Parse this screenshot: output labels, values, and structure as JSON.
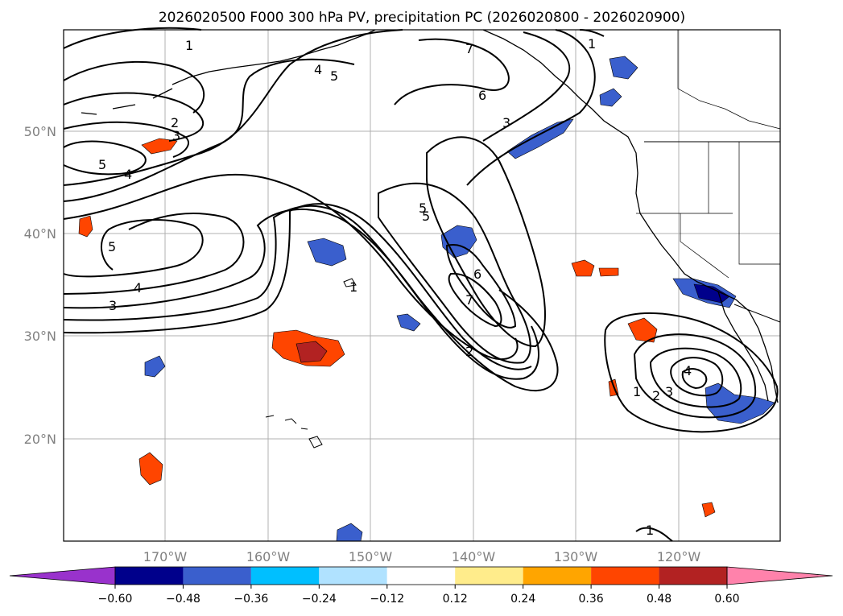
{
  "title": "2026020500 F000 300 hPa PV, precipitation PC (2026020800 - 2026020900)",
  "map": {
    "longitude_labels": [
      "170°W",
      "160°W",
      "150°W",
      "140°W",
      "130°W",
      "120°W"
    ],
    "latitude_labels": [
      "50°N",
      "40°N",
      "30°N",
      "20°N"
    ],
    "gridlines": true,
    "contour_color": "#000000"
  },
  "contour_labels": [
    "1",
    "2",
    "3",
    "4",
    "5",
    "5",
    "4",
    "5",
    "7",
    "6",
    "3",
    "1",
    "5",
    "4",
    "3",
    "5",
    "6",
    "7",
    "2",
    "1",
    "4",
    "3",
    "2",
    "1",
    "1"
  ],
  "colorbar": {
    "tick_labels": [
      "−0.60",
      "−0.48",
      "−0.36",
      "−0.24",
      "−0.12",
      "0.12",
      "0.24",
      "0.36",
      "0.48",
      "0.60"
    ],
    "colors": [
      "#9932cc",
      "#00008b",
      "#3a5fcd",
      "#00bfff",
      "#b0e2ff",
      "#ffffff",
      "#ffec8b",
      "#ffa500",
      "#ff4500",
      "#b22222",
      "#ff82ab"
    ]
  }
}
